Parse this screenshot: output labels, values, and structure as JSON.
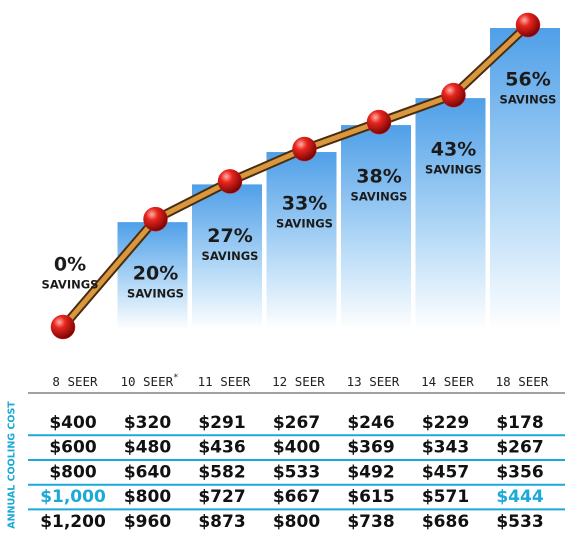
{
  "chart_data": {
    "type": "bar",
    "categories": [
      "8 SEER",
      "10 SEER",
      "11 SEER",
      "12 SEER",
      "13 SEER",
      "14 SEER",
      "18 SEER"
    ],
    "footnote_mark": "*",
    "values": [
      0,
      20,
      27,
      33,
      38,
      43,
      56
    ],
    "value_labels": [
      "0%",
      "20%",
      "27%",
      "33%",
      "38%",
      "43%",
      "56%"
    ],
    "value_caption": "SAVINGS",
    "color": "#5aa6ea",
    "line_color": "#d9983e",
    "marker_color": "#e0141a"
  },
  "table": {
    "row_axis_label": "ANNUAL COOLING COST",
    "rows": [
      [
        "$400",
        "$320",
        "$291",
        "$267",
        "$246",
        "$229",
        "$178"
      ],
      [
        "$600",
        "$480",
        "$436",
        "$400",
        "$369",
        "$343",
        "$267"
      ],
      [
        "$800",
        "$640",
        "$582",
        "$533",
        "$492",
        "$457",
        "$356"
      ],
      [
        "$1,000",
        "$800",
        "$727",
        "$667",
        "$615",
        "$571",
        "$444"
      ],
      [
        "$1,200",
        "$960",
        "$873",
        "$800",
        "$738",
        "$686",
        "$533"
      ]
    ],
    "highlight_color": "#1aa9d8",
    "highlight_cells": [
      [
        3,
        0
      ],
      [
        3,
        6
      ]
    ]
  }
}
